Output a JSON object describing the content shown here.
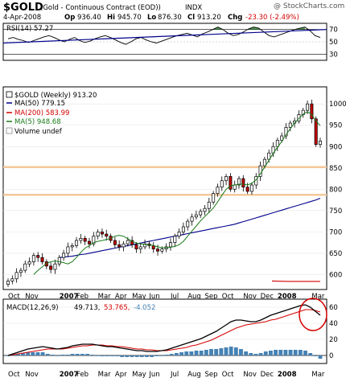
{
  "header": {
    "symbol": "$GOLD",
    "description": "(Gold - Continuous Contract (EOD))",
    "exchange": "INDX",
    "date": "4-Apr-2008",
    "open_label": "Op",
    "open": "936.40",
    "high_label": "Hi",
    "high": "945.70",
    "low_label": "Lo",
    "low": "876.30",
    "close_label": "Cl",
    "close": "913.20",
    "change_label": "Chg",
    "change": "-23.30 (-2.49%)",
    "change_color": "#d40000",
    "watermark": "@ StockCharts.com"
  },
  "colors": {
    "up_fill": "#ffffff",
    "down_fill": "#c00000",
    "ma50": "#00008b",
    "ma200": "#d40000",
    "ma5": "#1a7a1a",
    "hline": "#f4c89a",
    "rsi_line": "#000000",
    "rsi_mid": "#00008b",
    "macd_line": "#000000",
    "signal_line": "#d40000",
    "hist": "#4682b4",
    "annotation": "#d40000"
  },
  "chart_data": [
    {
      "panel": "rsi",
      "type": "line",
      "title": "RSI(14) 57.27",
      "yticks": [
        30,
        50,
        70
      ],
      "ylim": [
        20,
        80
      ],
      "reference_lines": [
        30,
        70
      ],
      "values": [
        55,
        57,
        54,
        52,
        49,
        52,
        55,
        58,
        60,
        57,
        53,
        50,
        54,
        57,
        52,
        49,
        51,
        55,
        58,
        60,
        57,
        53,
        49,
        46,
        50,
        55,
        57,
        53,
        50,
        48,
        51,
        54,
        57,
        60,
        62,
        64,
        61,
        58,
        63,
        66,
        70,
        74,
        70,
        64,
        60,
        62,
        66,
        71,
        74,
        72,
        66,
        60,
        58,
        61,
        64,
        67,
        70,
        72,
        74,
        68,
        60,
        57
      ]
    },
    {
      "panel": "price",
      "type": "candlestick",
      "title": "$GOLD (Weekly) 913.20",
      "legend": [
        {
          "name": "MA(50) 779.15",
          "color_key": "ma50"
        },
        {
          "name": "MA(200) 583.99",
          "color_key": "ma200"
        },
        {
          "name": "MA(5) 948.68",
          "color_key": "ma5"
        },
        {
          "name": "Volume undef",
          "color_key": "none"
        }
      ],
      "yticks": [
        600,
        650,
        700,
        750,
        800,
        850,
        900,
        950,
        1000
      ],
      "ylim": [
        565,
        1040
      ],
      "horizontal_lines": [
        852,
        787
      ],
      "xlabels": [
        "Oct",
        "Nov",
        "2007",
        "Feb",
        "Mar",
        "Apr",
        "May",
        "Jun",
        "Jul",
        "Aug",
        "Sep",
        "Oct",
        "Nov",
        "Dec",
        "2008",
        "Mar"
      ],
      "xlabel_positions": [
        0,
        4,
        12,
        16,
        21,
        25,
        29,
        33,
        38,
        42,
        46,
        50,
        55,
        59,
        63,
        71
      ],
      "close": [
        585,
        590,
        605,
        610,
        625,
        630,
        645,
        640,
        630,
        620,
        612,
        625,
        640,
        650,
        665,
        668,
        680,
        685,
        678,
        672,
        690,
        700,
        695,
        690,
        680,
        670,
        665,
        672,
        680,
        670,
        660,
        665,
        672,
        668,
        660,
        655,
        660,
        665,
        675,
        690,
        700,
        712,
        725,
        735,
        740,
        748,
        755,
        770,
        790,
        805,
        820,
        830,
        800,
        810,
        825,
        805,
        795,
        810,
        830,
        855,
        870,
        885,
        900,
        915,
        925,
        945,
        955,
        960,
        975,
        985,
        1000,
        965,
        905,
        913
      ],
      "ma50": [
        640,
        641,
        642,
        643,
        645,
        647,
        648,
        650,
        652,
        654,
        656,
        658,
        660,
        662,
        664,
        666,
        668,
        670,
        672,
        674,
        676,
        678,
        680,
        682,
        684,
        686,
        688,
        690,
        692,
        694,
        696,
        698,
        700,
        702,
        704,
        706,
        708,
        710,
        712,
        714,
        716,
        718,
        721,
        724,
        727,
        730,
        733,
        736,
        739,
        742,
        745,
        748,
        751,
        754,
        757,
        760,
        763,
        766,
        769,
        772,
        775,
        779
      ],
      "ma200": [
        585,
        584,
        584,
        584
      ],
      "ma5": [
        600,
        610,
        618,
        626,
        630,
        632,
        630,
        628,
        625,
        630,
        640,
        652,
        662,
        668,
        675,
        678,
        680,
        682,
        685,
        690,
        692,
        690,
        684,
        678,
        674,
        672,
        671,
        670,
        668,
        665,
        663,
        663,
        664,
        666,
        670,
        678,
        690,
        702,
        714,
        726,
        736,
        746,
        756,
        770,
        786,
        800,
        808,
        810,
        812,
        812,
        810,
        814,
        822,
        836,
        852,
        868,
        884,
        898,
        912,
        928,
        942,
        955,
        966,
        976,
        982,
        975,
        960,
        949
      ]
    },
    {
      "panel": "macd",
      "type": "line",
      "title": "MACD(12,26,9) 49.713, 53.765, -4.052",
      "title_parts": [
        "MACD(12,26,9)",
        "49.713,",
        "53.765,",
        "-4.052"
      ],
      "yticks": [
        0,
        20,
        40,
        60
      ],
      "ylim": [
        -10,
        70
      ],
      "xlabels": [
        "Oct",
        "Nov",
        "2007",
        "Feb",
        "Mar",
        "Apr",
        "May",
        "Jun",
        "Jul",
        "Aug",
        "Sep",
        "Oct",
        "Nov",
        "Dec",
        "2008",
        "Mar"
      ],
      "macd": [
        0,
        2,
        4,
        6,
        8,
        9,
        10,
        11,
        10,
        9,
        8,
        9,
        10,
        12,
        13,
        14,
        14,
        14,
        13,
        12,
        11,
        11,
        10,
        9,
        8,
        7,
        6,
        6,
        5,
        5,
        5,
        6,
        7,
        9,
        11,
        13,
        15,
        17,
        19,
        21,
        24,
        27,
        30,
        34,
        38,
        42,
        44,
        44,
        43,
        42,
        42,
        44,
        47,
        50,
        52,
        54,
        56,
        58,
        60,
        62,
        63,
        60,
        55,
        50
      ],
      "signal": [
        0,
        1,
        2,
        3,
        4,
        5,
        6,
        7,
        8,
        8,
        8,
        8,
        9,
        10,
        11,
        12,
        12,
        13,
        13,
        13,
        12,
        12,
        11,
        11,
        10,
        9,
        8,
        8,
        7,
        7,
        6,
        6,
        6,
        7,
        8,
        9,
        10,
        12,
        13,
        15,
        17,
        19,
        22,
        25,
        28,
        31,
        34,
        36,
        38,
        39,
        40,
        41,
        42,
        44,
        45,
        47,
        49,
        51,
        53,
        55,
        57,
        57,
        56,
        54
      ]
    }
  ]
}
